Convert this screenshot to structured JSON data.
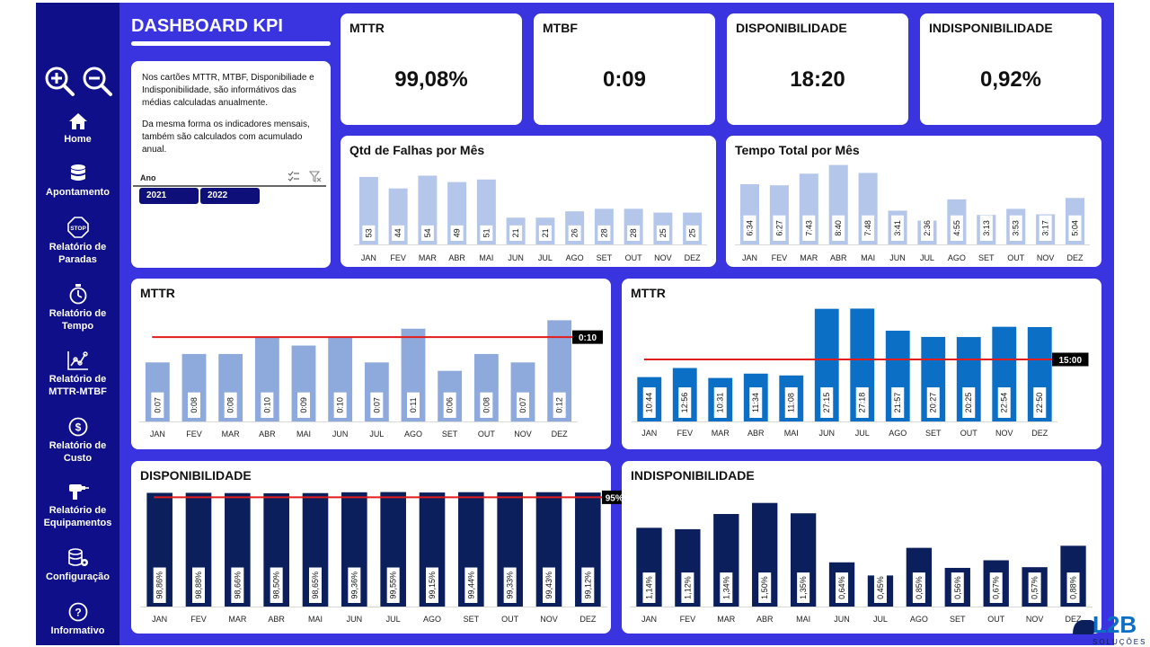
{
  "dashboard": {
    "title": "DASHBOARD KPI",
    "info_paragraph_1": "Nos cartões MTTR, MTBF, Disponibiliade e Indisponibilidade, são informátivos das médias calculadas anualmente.",
    "info_paragraph_2": "Da mesma forma os indicadores mensais, também são calculados com acumulado anual.",
    "slicer": {
      "label": "Ano",
      "options": [
        "2021",
        "2022"
      ]
    }
  },
  "sidebar": {
    "items": [
      {
        "label": "Home",
        "icon": "home-icon"
      },
      {
        "label": "Apontamento",
        "icon": "database-icon"
      },
      {
        "label": "Relatório de Paradas",
        "icon": "stop-sign-icon",
        "icon_text": "STOP"
      },
      {
        "label": "Relatório de Tempo",
        "icon": "stopwatch-icon"
      },
      {
        "label": "Relatório de MTTR-MTBF",
        "icon": "line-chart-icon"
      },
      {
        "label": "Relatório de Custo",
        "icon": "dollar-icon"
      },
      {
        "label": "Relatório de Equipamentos",
        "icon": "drill-icon"
      },
      {
        "label": "Configuração",
        "icon": "database-gear-icon"
      },
      {
        "label": "Informativo",
        "icon": "help-icon"
      }
    ]
  },
  "kpis": [
    {
      "label": "MTTR",
      "value": "99,08%"
    },
    {
      "label": "MTBF",
      "value": "0:09"
    },
    {
      "label": "DISPONIBILIDADE",
      "value": "18:20"
    },
    {
      "label": "INDISPONIBILIDADE",
      "value": "0,92%"
    }
  ],
  "colors": {
    "frame": "#3a34e0",
    "sidebar": "#0f0f8a",
    "light_bar": "#b4c6ea",
    "mid_bar": "#8eaadc",
    "blue_bar": "#0c6fc6",
    "navy_bar": "#0a1f5c",
    "target_line": "#e31b1b"
  },
  "brand": {
    "logo_text": "L2B",
    "logo_subtext": "SOLUÇÕES"
  },
  "chart_data": [
    {
      "id": "falhas",
      "type": "bar",
      "title": "Qtd de Falhas por Mês",
      "categories": [
        "JAN",
        "FEV",
        "MAR",
        "ABR",
        "MAI",
        "JUN",
        "JUL",
        "AGO",
        "SET",
        "OUT",
        "NOV",
        "DEZ"
      ],
      "values": [
        53,
        44,
        54,
        49,
        51,
        21,
        21,
        26,
        28,
        28,
        25,
        25
      ],
      "labels": [
        "53",
        "44",
        "54",
        "49",
        "51",
        "21",
        "21",
        "26",
        "28",
        "28",
        "25",
        "25"
      ],
      "ylim": [
        0,
        60
      ]
    },
    {
      "id": "tempo",
      "type": "bar",
      "title": "Tempo Total por Mês",
      "categories": [
        "JAN",
        "FEV",
        "MAR",
        "ABR",
        "MAI",
        "JUN",
        "JUL",
        "AGO",
        "SET",
        "OUT",
        "NOV",
        "DEZ"
      ],
      "values": [
        394,
        387,
        463,
        520,
        468,
        221,
        156,
        295,
        193,
        233,
        197,
        304
      ],
      "labels": [
        "6:34",
        "6:27",
        "7:43",
        "8:40",
        "7:48",
        "3:41",
        "2:36",
        "4:55",
        "3:13",
        "3:53",
        "3:17",
        "5:04"
      ],
      "unit": "minutes",
      "ylim": [
        0,
        600
      ]
    },
    {
      "id": "mttr_left",
      "type": "bar",
      "title": "MTTR",
      "categories": [
        "JAN",
        "FEV",
        "MAR",
        "ABR",
        "MAI",
        "JUN",
        "JUL",
        "AGO",
        "SET",
        "OUT",
        "NOV",
        "DEZ"
      ],
      "values": [
        7,
        8,
        8,
        10,
        9,
        10,
        7,
        11,
        6,
        8,
        7,
        12
      ],
      "labels": [
        "0:07",
        "0:08",
        "0:08",
        "0:10",
        "0:09",
        "0:10",
        "0:07",
        "0:11",
        "0:06",
        "0:08",
        "0:07",
        "0:12"
      ],
      "unit": "minutes",
      "target": 10,
      "target_label": "0:10",
      "ylim": [
        0,
        13
      ]
    },
    {
      "id": "mttr_right",
      "type": "bar",
      "title": "MTTR",
      "categories": [
        "JAN",
        "FEV",
        "MAR",
        "ABR",
        "MAI",
        "JUN",
        "JUL",
        "AGO",
        "SET",
        "OUT",
        "NOV",
        "DEZ"
      ],
      "values": [
        10.73,
        12.93,
        10.52,
        11.57,
        11.13,
        27.25,
        27.3,
        21.95,
        20.45,
        20.42,
        22.9,
        22.83
      ],
      "labels": [
        "10:44",
        "12:56",
        "10:31",
        "11:34",
        "11:08",
        "27:15",
        "27:18",
        "21:57",
        "20:27",
        "20:25",
        "22:54",
        "22:50"
      ],
      "target": 15,
      "target_label": "15:00",
      "ylim": [
        0,
        30
      ]
    },
    {
      "id": "disponibilidade",
      "type": "bar",
      "title": "DISPONIBILIDADE",
      "categories": [
        "JAN",
        "FEV",
        "MAR",
        "ABR",
        "MAI",
        "JUN",
        "JUL",
        "AGO",
        "SET",
        "OUT",
        "NOV",
        "DEZ"
      ],
      "values": [
        98.86,
        98.88,
        98.66,
        98.5,
        98.65,
        99.36,
        99.55,
        99.15,
        99.44,
        99.33,
        99.43,
        99.12
      ],
      "labels": [
        "98,86%",
        "98,88%",
        "98,66%",
        "98,50%",
        "98,65%",
        "99,36%",
        "99,55%",
        "99,15%",
        "99,44%",
        "99,33%",
        "99,43%",
        "99,12%"
      ],
      "target": 95,
      "target_label": "95%",
      "ylim": [
        0,
        100
      ]
    },
    {
      "id": "indisponibilidade",
      "type": "bar",
      "title": "INDISPONIBILIDADE",
      "categories": [
        "JAN",
        "FEV",
        "MAR",
        "ABR",
        "MAI",
        "JUN",
        "JUL",
        "AGO",
        "SET",
        "OUT",
        "NOV",
        "DEZ"
      ],
      "values": [
        1.14,
        1.12,
        1.34,
        1.5,
        1.35,
        0.64,
        0.45,
        0.85,
        0.56,
        0.67,
        0.57,
        0.88
      ],
      "labels": [
        "1,14%",
        "1,12%",
        "1,34%",
        "1,50%",
        "1,35%",
        "0,64%",
        "0,45%",
        "0,85%",
        "0,56%",
        "0,67%",
        "0,57%",
        "0,88%"
      ],
      "ylim": [
        0,
        1.6
      ]
    }
  ]
}
